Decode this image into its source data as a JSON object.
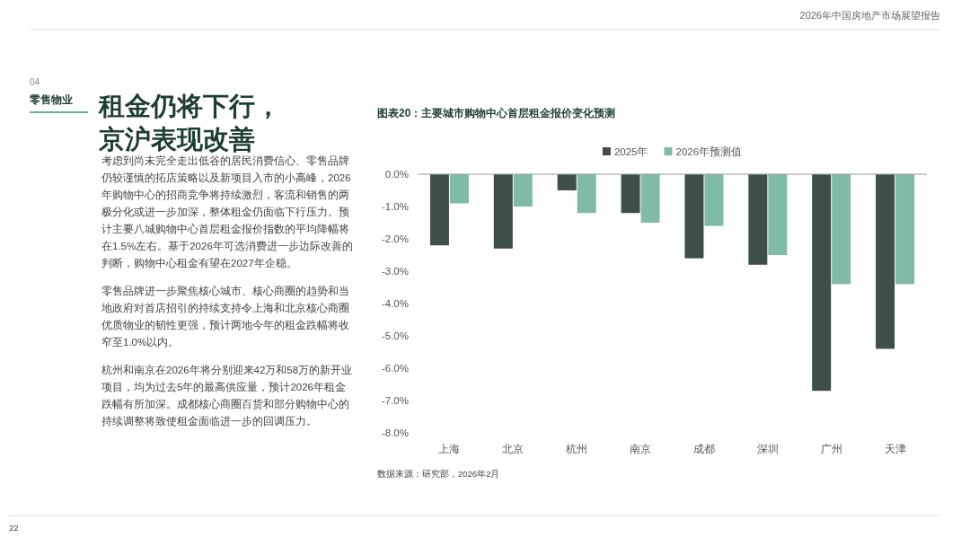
{
  "chart_data": {
    "type": "bar",
    "title": "图表20：主要城市购物中心首层租金报价变化预测",
    "categories": [
      "上海",
      "北京",
      "杭州",
      "南京",
      "成都",
      "深圳",
      "广州",
      "天津"
    ],
    "series": [
      {
        "name": "2025年",
        "color": "#3e4e4b",
        "values": [
          -2.2,
          -2.3,
          -0.5,
          -1.2,
          -2.6,
          -2.8,
          -6.7,
          -5.4
        ]
      },
      {
        "name": "2026年预测值",
        "color": "#80bba9",
        "values": [
          -0.9,
          -1.0,
          -1.2,
          -1.5,
          -1.6,
          -2.5,
          -3.4,
          -3.4
        ]
      }
    ],
    "ylim": [
      -8,
      0
    ],
    "yticks": [
      {
        "value": 0,
        "label": "0.0%"
      },
      {
        "value": -1,
        "label": "-1.0%"
      },
      {
        "value": -2,
        "label": "-2.0%"
      },
      {
        "value": -3,
        "label": "-3.0%"
      },
      {
        "value": -4,
        "label": "-4.0%"
      },
      {
        "value": -5,
        "label": "-5.0%"
      },
      {
        "value": -6,
        "label": "-6.0%"
      },
      {
        "value": -7,
        "label": "-7.0%"
      },
      {
        "value": -8,
        "label": "-8.0%"
      }
    ],
    "legend": "top",
    "grid": false,
    "annotations": [
      "2026年中国房地产市场展望报告",
      "04",
      "零售物业",
      "租金仍将下行，京沪表现改善",
      "考虑到尚未完全走出低谷的居民消费信心、零售品牌仍较谨慎的拓店策略以及新项目入市的小高峰，2026年购物中心的招商竞争将持续激烈，客流和销售的两极分化或进一步加深，整体租金仍面临下行压力。预计主要八城购物中心首层租金报价指数的平均降幅将在1.5%左右。基于2026年可选消费进一步边际改善的判断，购物中心租金有望在2027年企稳。",
      "零售品牌进一步聚焦核心城市、核心商圈的趋势和当地政府对首店招引的持续支持令上海和北京核心商圈优质物业的韧性更强，预计两地今年的租金跌幅将收窄至1.0%以内。",
      "杭州和南京在2026年将分别迎来42万和58万的新开业项目，均为过去5年的最高供应量，预计2026年租金跌幅有所加深。成都核心商圈百货和部分购物中心的持续调整将致使租金面临进一步的回调压力。",
      "数据来源：研究部，2026年2月",
      "22"
    ]
  }
}
